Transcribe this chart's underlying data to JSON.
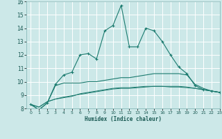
{
  "title": "",
  "xlabel": "Humidex (Indice chaleur)",
  "bg_color": "#cce8e8",
  "grid_color": "#ffffff",
  "line_color": "#1a7a6e",
  "xlim": [
    -0.5,
    23
  ],
  "ylim": [
    8,
    16
  ],
  "xticks": [
    0,
    1,
    2,
    3,
    4,
    5,
    6,
    7,
    8,
    9,
    10,
    11,
    12,
    13,
    14,
    15,
    16,
    17,
    18,
    19,
    20,
    21,
    22,
    23
  ],
  "yticks": [
    8,
    9,
    10,
    11,
    12,
    13,
    14,
    15,
    16
  ],
  "line1_x": [
    0,
    1,
    2,
    3,
    4,
    5,
    6,
    7,
    8,
    9,
    10,
    11,
    12,
    13,
    14,
    15,
    16,
    17,
    18,
    19,
    20,
    21,
    22,
    23
  ],
  "line1_y": [
    8.3,
    7.9,
    8.4,
    9.8,
    10.5,
    10.7,
    12.0,
    12.1,
    11.7,
    13.8,
    14.2,
    15.7,
    12.6,
    12.6,
    14.0,
    13.8,
    13.0,
    12.0,
    11.1,
    10.6,
    9.7,
    9.4,
    9.3,
    9.2
  ],
  "line2_x": [
    0,
    1,
    2,
    3,
    4,
    5,
    6,
    7,
    8,
    9,
    10,
    11,
    12,
    13,
    14,
    15,
    16,
    17,
    18,
    19,
    20,
    21,
    22,
    23
  ],
  "line2_y": [
    8.3,
    7.9,
    8.4,
    9.7,
    9.9,
    9.9,
    9.9,
    10.0,
    10.0,
    10.1,
    10.2,
    10.3,
    10.3,
    10.4,
    10.5,
    10.6,
    10.6,
    10.6,
    10.6,
    10.5,
    9.8,
    9.5,
    9.3,
    9.2
  ],
  "line3_x": [
    0,
    1,
    2,
    3,
    4,
    5,
    6,
    7,
    8,
    9,
    10,
    11,
    12,
    13,
    14,
    15,
    16,
    17,
    18,
    19,
    20,
    21,
    22,
    23
  ],
  "line3_y": [
    8.3,
    8.1,
    8.5,
    8.7,
    8.8,
    8.9,
    9.1,
    9.2,
    9.3,
    9.4,
    9.5,
    9.55,
    9.55,
    9.6,
    9.65,
    9.65,
    9.65,
    9.6,
    9.6,
    9.55,
    9.5,
    9.4,
    9.3,
    9.2
  ],
  "line4_x": [
    0,
    1,
    2,
    3,
    4,
    5,
    6,
    7,
    8,
    9,
    10,
    11,
    12,
    13,
    14,
    15,
    16,
    17,
    18,
    19,
    20,
    21,
    22,
    23
  ],
  "line4_y": [
    8.3,
    8.1,
    8.5,
    8.7,
    8.85,
    8.95,
    9.05,
    9.15,
    9.25,
    9.35,
    9.45,
    9.5,
    9.5,
    9.55,
    9.6,
    9.65,
    9.65,
    9.65,
    9.65,
    9.6,
    9.5,
    9.4,
    9.3,
    9.2
  ]
}
